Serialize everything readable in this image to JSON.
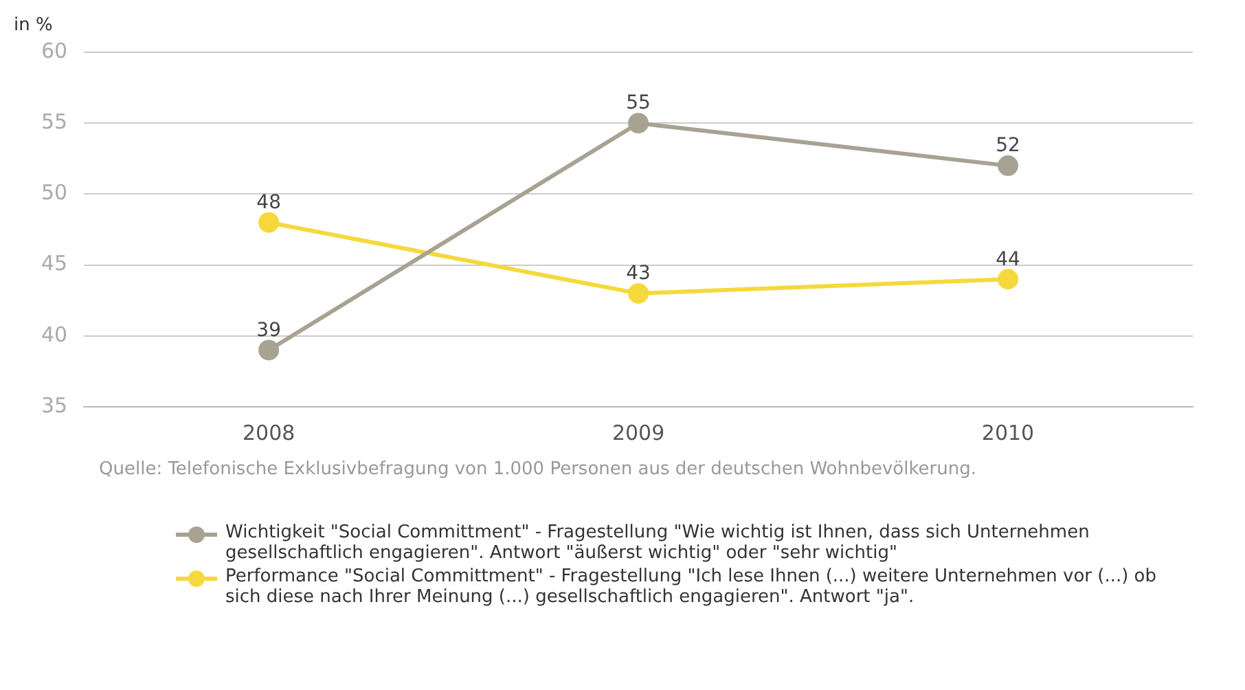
{
  "chart_data": {
    "type": "line",
    "ylabel": "in %",
    "categories": [
      "2008",
      "2009",
      "2010"
    ],
    "series": [
      {
        "name": "Wichtigkeit \"Social Committment\" - Fragestellung \"Wie wichtig ist Ihnen, dass sich Unternehmen gesellschaftlich engagieren\". Antwort \"äußerst wichtig\" oder \"sehr wichtig\"",
        "color": "#a8a293",
        "values": [
          39,
          55,
          52
        ]
      },
      {
        "name": "Performance \"Social Committment\" - Fragestellung \"Ich lese Ihnen (...) weitere Unternehmen vor (...) ob sich diese nach Ihrer Meinung (...) gesellschaftlich engagieren\". Antwort \"ja\".",
        "color": "#f5d93c",
        "values": [
          48,
          43,
          44
        ]
      }
    ],
    "ylim": [
      35,
      60
    ],
    "yticks": [
      35,
      40,
      45,
      50,
      55,
      60
    ],
    "grid": "y",
    "marker": "circle",
    "line_style": "solid",
    "data_labels": true,
    "legend": "bottom",
    "annotations": [
      "Quelle: Telefonische Exklusivbefragung von 1.000 Personen aus der deutschen Wohnbevölkerung."
    ]
  }
}
